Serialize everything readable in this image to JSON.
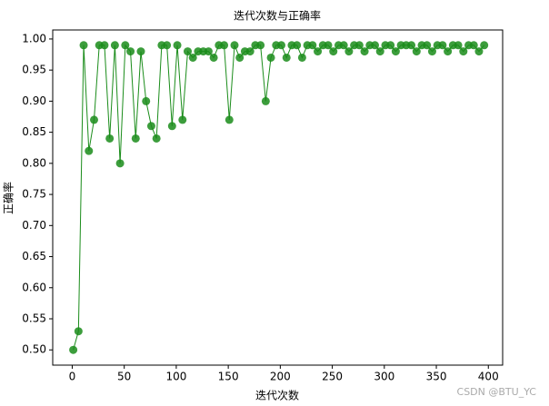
{
  "chart_data": {
    "type": "line",
    "title": "迭代次数与正确率",
    "x_label": "迭代次数",
    "y_label": "正确率",
    "x": [
      1,
      6,
      11,
      16,
      21,
      26,
      31,
      36,
      41,
      46,
      51,
      56,
      61,
      66,
      71,
      76,
      81,
      86,
      91,
      96,
      101,
      106,
      111,
      116,
      121,
      126,
      131,
      136,
      141,
      146,
      151,
      156,
      161,
      166,
      171,
      176,
      181,
      186,
      191,
      196,
      201,
      206,
      211,
      216,
      221,
      226,
      231,
      236,
      241,
      246,
      251,
      256,
      261,
      266,
      271,
      276,
      281,
      286,
      291,
      296,
      301,
      306,
      311,
      316,
      321,
      326,
      331,
      336,
      341,
      346,
      351,
      356,
      361,
      366,
      371,
      376,
      381,
      386,
      391,
      396
    ],
    "values": [
      0.5,
      0.53,
      0.99,
      0.82,
      0.87,
      0.99,
      0.99,
      0.84,
      0.99,
      0.8,
      0.99,
      0.98,
      0.84,
      0.98,
      0.9,
      0.86,
      0.84,
      0.99,
      0.99,
      0.86,
      0.99,
      0.87,
      0.98,
      0.97,
      0.98,
      0.98,
      0.98,
      0.97,
      0.99,
      0.99,
      0.87,
      0.99,
      0.97,
      0.98,
      0.98,
      0.99,
      0.99,
      0.9,
      0.97,
      0.99,
      0.99,
      0.97,
      0.99,
      0.99,
      0.97,
      0.99,
      0.99,
      0.98,
      0.99,
      0.99,
      0.98,
      0.99,
      0.99,
      0.98,
      0.99,
      0.99,
      0.98,
      0.99,
      0.99,
      0.98,
      0.99,
      0.99,
      0.98,
      0.99,
      0.99,
      0.99,
      0.98,
      0.99,
      0.99,
      0.98,
      0.99,
      0.99,
      0.98,
      0.99,
      0.99,
      0.98,
      0.99,
      0.99,
      0.98,
      0.99
    ],
    "color": "#1a8c1a",
    "xlim": [
      -18.75,
      413.75
    ],
    "ylim": [
      0.4755,
      1.0145
    ],
    "xticks": [
      0,
      50,
      100,
      150,
      200,
      250,
      300,
      350,
      400
    ],
    "yticks": [
      {
        "value": 0.5,
        "label": "0.50"
      },
      {
        "value": 0.55,
        "label": "0.55"
      },
      {
        "value": 0.6,
        "label": "0.60"
      },
      {
        "value": 0.65,
        "label": "0.65"
      },
      {
        "value": 0.7,
        "label": "0.70"
      },
      {
        "value": 0.75,
        "label": "0.75"
      },
      {
        "value": 0.8,
        "label": "0.80"
      },
      {
        "value": 0.85,
        "label": "0.85"
      },
      {
        "value": 0.9,
        "label": "0.90"
      },
      {
        "value": 0.95,
        "label": "0.95"
      },
      {
        "value": 1.0,
        "label": "1.00"
      }
    ],
    "watermark": "CSDN @BTU_YC"
  }
}
